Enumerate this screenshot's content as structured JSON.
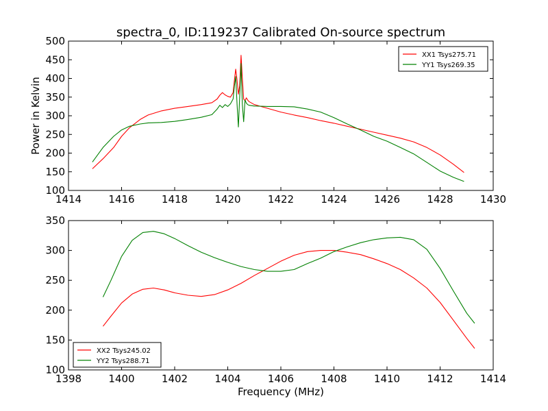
{
  "figure": {
    "title": "spectra_0, ID:119237 Calibrated On-source spectrum",
    "xlabel": "Frequency (MHz)"
  },
  "chart_data": [
    {
      "type": "line",
      "title": "spectra_0, ID:119237 Calibrated On-source spectrum",
      "xlabel": "",
      "ylabel": "Power in Kelvin",
      "xlim": [
        1414,
        1430
      ],
      "ylim": [
        100,
        500
      ],
      "xticks": [
        1414,
        1416,
        1418,
        1420,
        1422,
        1424,
        1426,
        1428,
        1430
      ],
      "yticks": [
        100,
        150,
        200,
        250,
        300,
        350,
        400,
        450,
        500
      ],
      "grid": false,
      "legend": "top-right",
      "series": [
        {
          "name": "XX1 Tsys275.71",
          "color": "#ff0000",
          "x": [
            1414.9,
            1415.3,
            1415.7,
            1416.0,
            1416.3,
            1416.7,
            1417.0,
            1417.5,
            1418.0,
            1418.5,
            1419.0,
            1419.4,
            1419.6,
            1419.7,
            1419.8,
            1419.9,
            1420.0,
            1420.1,
            1420.2,
            1420.25,
            1420.3,
            1420.35,
            1420.4,
            1420.45,
            1420.5,
            1420.55,
            1420.6,
            1420.65,
            1420.7,
            1420.75,
            1420.8,
            1421.0,
            1421.5,
            1422.0,
            1422.5,
            1423.0,
            1423.5,
            1424.0,
            1424.5,
            1425.0,
            1425.5,
            1426.0,
            1426.5,
            1427.0,
            1427.5,
            1428.0,
            1428.5,
            1428.9
          ],
          "y": [
            158,
            185,
            215,
            245,
            268,
            290,
            302,
            313,
            320,
            325,
            330,
            335,
            345,
            355,
            362,
            356,
            352,
            350,
            362,
            395,
            425,
            395,
            358,
            380,
            462,
            400,
            345,
            340,
            348,
            342,
            338,
            330,
            320,
            310,
            302,
            295,
            287,
            280,
            272,
            264,
            256,
            248,
            240,
            230,
            215,
            195,
            170,
            148
          ]
        },
        {
          "name": "YY1 Tsys269.35",
          "color": "#008000",
          "x": [
            1414.9,
            1415.3,
            1415.7,
            1416.0,
            1416.3,
            1416.7,
            1417.0,
            1417.5,
            1418.0,
            1418.5,
            1419.0,
            1419.4,
            1419.6,
            1419.7,
            1419.8,
            1419.9,
            1420.0,
            1420.1,
            1420.2,
            1420.25,
            1420.3,
            1420.35,
            1420.4,
            1420.45,
            1420.5,
            1420.55,
            1420.6,
            1420.65,
            1420.7,
            1420.75,
            1420.8,
            1421.0,
            1421.5,
            1422.0,
            1422.5,
            1423.0,
            1423.5,
            1424.0,
            1424.5,
            1425.0,
            1425.5,
            1426.0,
            1426.5,
            1427.0,
            1427.5,
            1428.0,
            1428.5,
            1428.9
          ],
          "y": [
            176,
            215,
            245,
            262,
            272,
            278,
            281,
            282,
            285,
            290,
            296,
            303,
            318,
            328,
            322,
            330,
            325,
            332,
            345,
            380,
            405,
            330,
            270,
            350,
            440,
            330,
            284,
            342,
            334,
            330,
            328,
            326,
            325,
            325,
            324,
            318,
            310,
            295,
            278,
            262,
            245,
            232,
            215,
            198,
            175,
            152,
            135,
            124
          ]
        }
      ]
    },
    {
      "type": "line",
      "title": "",
      "xlabel": "Frequency (MHz)",
      "ylabel": "",
      "xlim": [
        1398,
        1414
      ],
      "ylim": [
        100,
        350
      ],
      "xticks": [
        1398,
        1400,
        1402,
        1404,
        1406,
        1408,
        1410,
        1412,
        1414
      ],
      "yticks": [
        100,
        150,
        200,
        250,
        300,
        350
      ],
      "grid": false,
      "legend": "bottom-left",
      "series": [
        {
          "name": "XX2 Tsys245.02",
          "color": "#ff0000",
          "x": [
            1399.3,
            1399.6,
            1400.0,
            1400.4,
            1400.8,
            1401.2,
            1401.6,
            1402.0,
            1402.5,
            1403.0,
            1403.5,
            1404.0,
            1404.5,
            1405.0,
            1405.5,
            1406.0,
            1406.5,
            1407.0,
            1407.5,
            1408.0,
            1408.5,
            1409.0,
            1409.5,
            1410.0,
            1410.5,
            1411.0,
            1411.5,
            1412.0,
            1412.5,
            1413.0,
            1413.3
          ],
          "y": [
            173,
            190,
            212,
            227,
            235,
            237,
            234,
            229,
            225,
            223,
            226,
            234,
            245,
            258,
            270,
            282,
            292,
            298,
            300,
            300,
            297,
            293,
            286,
            278,
            268,
            254,
            237,
            213,
            183,
            153,
            136
          ]
        },
        {
          "name": "YY2 Tsys288.71",
          "color": "#008000",
          "x": [
            1399.3,
            1399.6,
            1400.0,
            1400.4,
            1400.8,
            1401.2,
            1401.6,
            1402.0,
            1402.5,
            1403.0,
            1403.5,
            1404.0,
            1404.5,
            1405.0,
            1405.5,
            1406.0,
            1406.5,
            1407.0,
            1407.5,
            1408.0,
            1408.5,
            1409.0,
            1409.5,
            1410.0,
            1410.5,
            1411.0,
            1411.5,
            1412.0,
            1412.5,
            1413.0,
            1413.3
          ],
          "y": [
            222,
            250,
            290,
            317,
            330,
            332,
            328,
            320,
            308,
            297,
            288,
            280,
            273,
            268,
            265,
            265,
            268,
            278,
            287,
            298,
            306,
            313,
            318,
            321,
            322,
            318,
            302,
            270,
            232,
            195,
            178
          ]
        }
      ]
    }
  ]
}
